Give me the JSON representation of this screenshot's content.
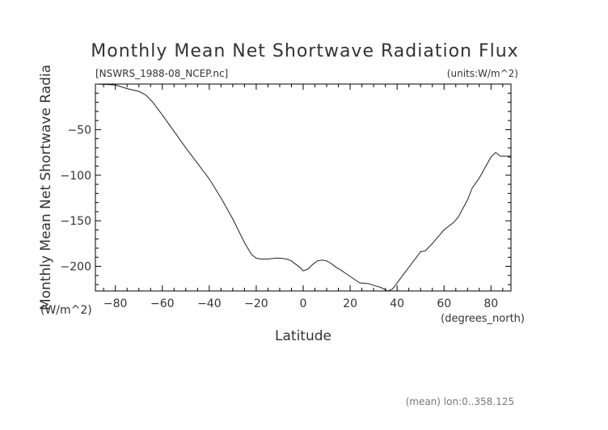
{
  "chart_data": {
    "type": "line",
    "title": "Monthly Mean Net Shortwave Radiation Flux",
    "file_label": "[NSWRS_1988-08_NCEP.nc]",
    "units_label": "(units:W/m^2)",
    "xlabel": "Latitude",
    "x_units": "(degrees_north)",
    "ylabel": "Monthly Mean Net Shortwave Radia",
    "ylabel_units": "(W/m^2)",
    "footer": "(mean) lon:0..358.125",
    "xlim": [
      -88.5,
      88.5
    ],
    "ylim": [
      -227,
      0
    ],
    "x_ticks": [
      -80,
      -60,
      -40,
      -20,
      0,
      20,
      40,
      60,
      80
    ],
    "y_ticks": [
      -50,
      -100,
      -150,
      -200
    ],
    "x_tick_labels": [
      "−80",
      "−60",
      "−40",
      "−20",
      "0",
      "20",
      "40",
      "60",
      "80"
    ],
    "y_tick_labels": [
      "−50",
      "−100",
      "−150",
      "−200"
    ],
    "x_minor_step": 5,
    "y_minor_step": 10,
    "series": [
      {
        "x": [
          -88.5,
          -80,
          -75,
          -70,
          -67,
          -64,
          -60,
          -55,
          -50,
          -45,
          -40,
          -35,
          -30,
          -25,
          -22,
          -20,
          -18,
          -15,
          -12,
          -10,
          -7,
          -5,
          -3,
          -1,
          0,
          2,
          4,
          6,
          8,
          10,
          12,
          14,
          16,
          20,
          24,
          28,
          30,
          33,
          36,
          38,
          40,
          45,
          50,
          52,
          55,
          60,
          64,
          66,
          70,
          72,
          75,
          80,
          82,
          84,
          86,
          88.5
        ],
        "y": [
          0,
          -1,
          -5,
          -8,
          -12,
          -20,
          -34,
          -52,
          -70,
          -87,
          -104,
          -125,
          -148,
          -174,
          -187,
          -191,
          -192,
          -192,
          -191,
          -191,
          -192,
          -194,
          -198,
          -202,
          -205,
          -203,
          -198,
          -194,
          -193,
          -194,
          -197,
          -201,
          -204,
          -211,
          -218,
          -219,
          -221,
          -223,
          -227,
          -225,
          -218,
          -201,
          -184,
          -183,
          -175,
          -160,
          -152,
          -146,
          -127,
          -114,
          -103,
          -80,
          -75,
          -79,
          -79,
          -79
        ]
      }
    ]
  }
}
